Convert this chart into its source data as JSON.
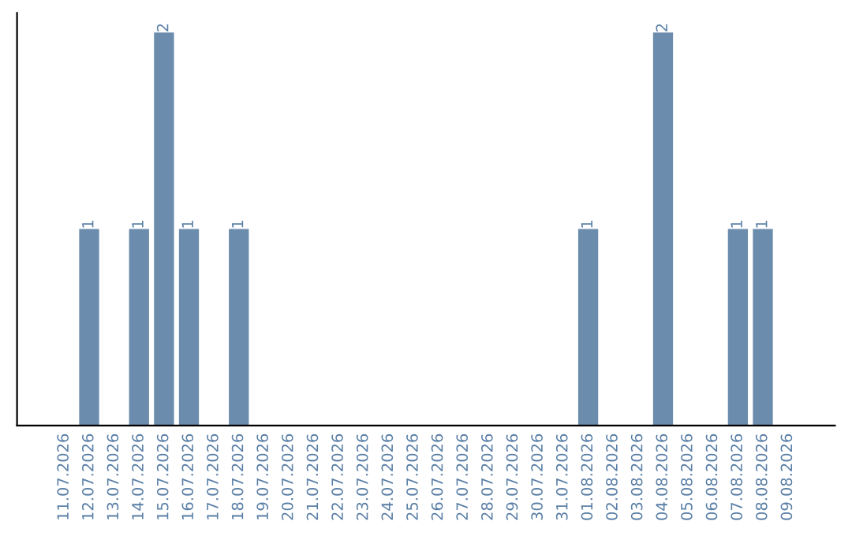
{
  "chart_data": {
    "type": "bar",
    "categories": [
      "11.07.2026",
      "12.07.2026",
      "13.07.2026",
      "14.07.2026",
      "15.07.2026",
      "16.07.2026",
      "17.07.2026",
      "18.07.2026",
      "19.07.2026",
      "20.07.2026",
      "21.07.2026",
      "22.07.2026",
      "23.07.2026",
      "24.07.2026",
      "25.07.2026",
      "26.07.2026",
      "27.07.2026",
      "28.07.2026",
      "29.07.2026",
      "30.07.2026",
      "31.07.2026",
      "01.08.2026",
      "02.08.2026",
      "03.08.2026",
      "04.08.2026",
      "05.08.2026",
      "06.08.2026",
      "07.08.2026",
      "08.08.2026",
      "09.08.2026"
    ],
    "values": [
      0,
      1,
      0,
      1,
      2,
      1,
      0,
      1,
      0,
      0,
      0,
      0,
      0,
      0,
      0,
      0,
      0,
      0,
      0,
      0,
      0,
      1,
      0,
      0,
      2,
      0,
      0,
      1,
      1,
      0
    ],
    "color": "#6b8cac",
    "value_labels": [
      null,
      "1",
      null,
      "1",
      "2",
      "1",
      null,
      "1",
      null,
      null,
      null,
      null,
      null,
      null,
      null,
      null,
      null,
      null,
      null,
      null,
      null,
      "1",
      null,
      null,
      "2",
      null,
      null,
      "1",
      "1",
      null
    ],
    "tick_labels": "x",
    "grid": false,
    "legend": false
  }
}
